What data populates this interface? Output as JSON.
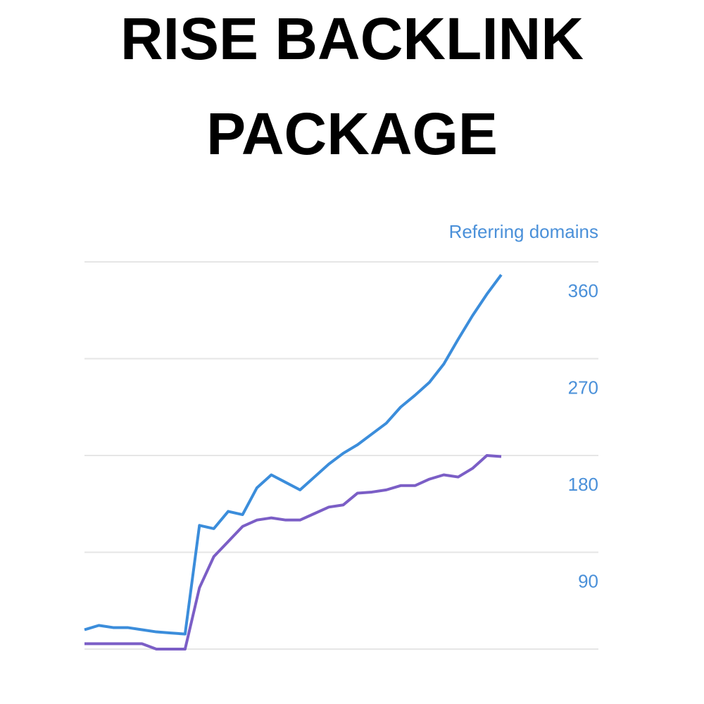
{
  "chart_data": {
    "type": "line",
    "title": "RISE BACKLINK PACKAGE",
    "y_label": "Referring domains",
    "ylim": [
      0,
      360
    ],
    "yticks": [
      90,
      180,
      270,
      360
    ],
    "grid": true,
    "series": [
      {
        "color": "#3b8ddb",
        "values": [
          18,
          22,
          20,
          20,
          18,
          16,
          15,
          14,
          115,
          112,
          128,
          125,
          150,
          162,
          155,
          148,
          160,
          172,
          182,
          190,
          200,
          210,
          225,
          236,
          248,
          265,
          288,
          310,
          330,
          348
        ]
      },
      {
        "color": "#7b5ec6",
        "values": [
          5,
          5,
          5,
          5,
          5,
          0,
          0,
          0,
          57,
          86,
          100,
          114,
          120,
          122,
          120,
          120,
          126,
          132,
          134,
          145,
          146,
          148,
          152,
          152,
          158,
          162,
          160,
          168,
          180,
          179
        ]
      }
    ]
  }
}
